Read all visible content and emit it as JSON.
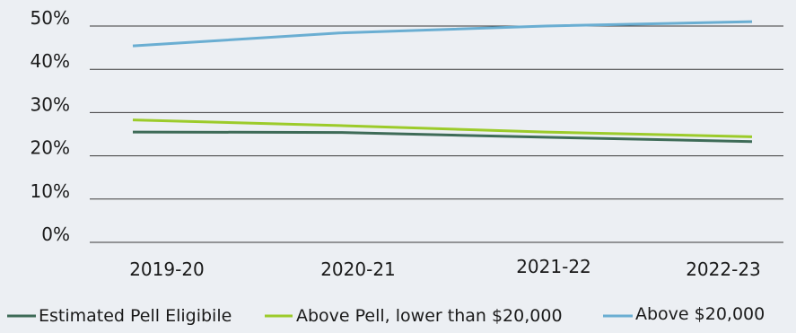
{
  "chart_data": {
    "type": "line",
    "title": "",
    "xlabel": "",
    "ylabel": "",
    "categories": [
      "2019-20",
      "2020-21",
      "2021-22",
      "2022-23"
    ],
    "y_ticks": [
      "0%",
      "10%",
      "20%",
      "30%",
      "40%",
      "50%"
    ],
    "ylim": [
      0,
      50
    ],
    "grid": true,
    "legend_position": "bottom",
    "series": [
      {
        "name": "Estimated Pell Eligibile",
        "color": "#3e6b57",
        "values": [
          25.5,
          25.4,
          24.3,
          23.3
        ]
      },
      {
        "name": "Above Pell, lower than $20,000",
        "color": "#9ccb2a",
        "values": [
          28.3,
          27.0,
          25.5,
          24.4
        ]
      },
      {
        "name": "Above $20,000",
        "color": "#6aaed2",
        "values": [
          45.4,
          48.4,
          50.0,
          51.0
        ]
      }
    ]
  }
}
